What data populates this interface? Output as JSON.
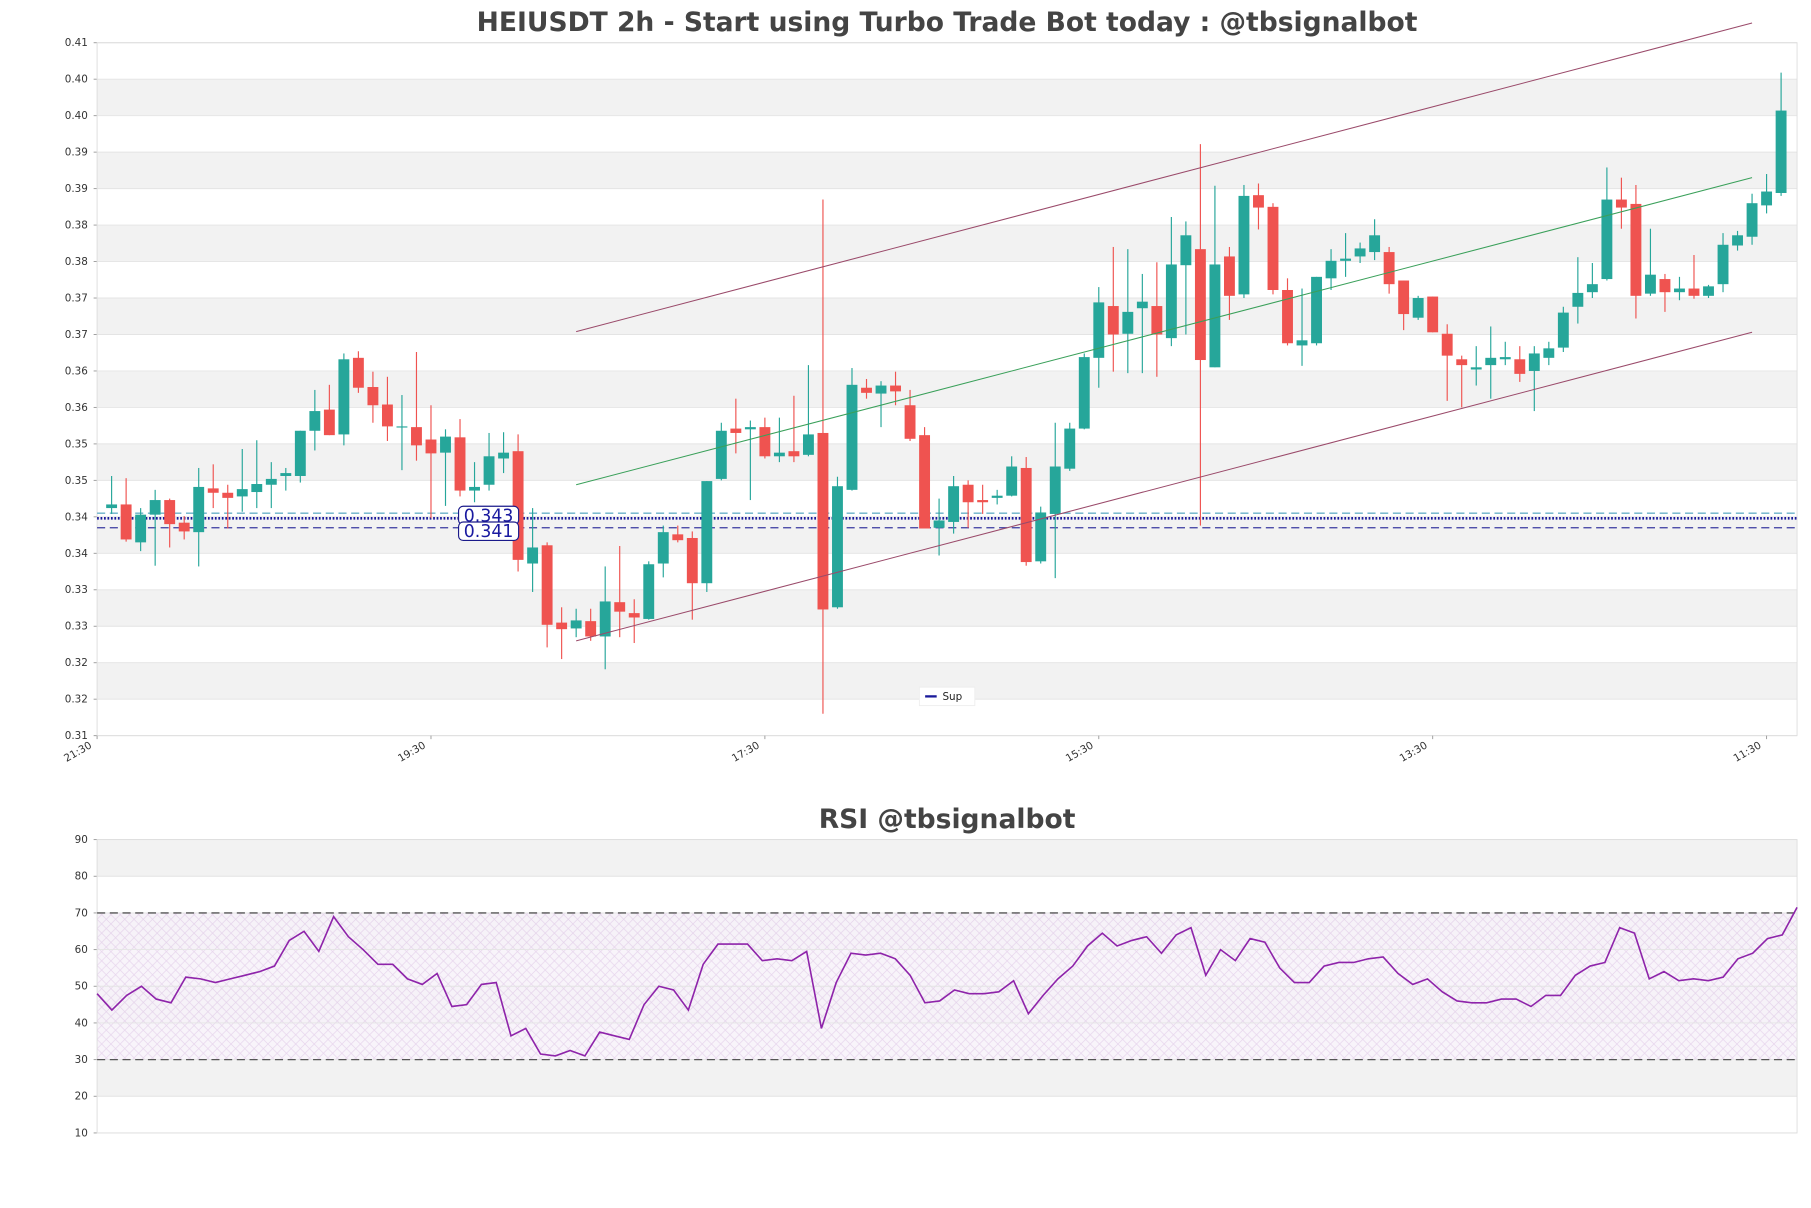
{
  "chart_data": [
    {
      "type": "candlestick",
      "title": "HEIUSDT 2h - Start using Turbo Trade Bot today : @tbsignalbot",
      "up_color": "#26a69a",
      "down_color": "#ef5350",
      "open": [
        0.3437,
        0.3442,
        0.339,
        0.3428,
        0.3448,
        0.3417,
        0.3404,
        0.3464,
        0.3458,
        0.3453,
        0.3459,
        0.3469,
        0.3481,
        0.3481,
        0.3543,
        0.3572,
        0.3538,
        0.3643,
        0.3603,
        0.3579,
        0.3548,
        0.3548,
        0.3531,
        0.3513,
        0.3534,
        0.3461,
        0.3469,
        0.3505,
        0.3515,
        0.3361,
        0.3386,
        0.328,
        0.3272,
        0.3282,
        0.3261,
        0.3308,
        0.3293,
        0.3285,
        0.3361,
        0.3401,
        0.3396,
        0.3334,
        0.3477,
        0.3546,
        0.3545,
        0.3548,
        0.3508,
        0.3515,
        0.351,
        0.354,
        0.3301,
        0.3462,
        0.3602,
        0.3594,
        0.3605,
        0.3578,
        0.3537,
        0.341,
        0.3418,
        0.3469,
        0.3448,
        0.3451,
        0.3454,
        0.3492,
        0.3364,
        0.3429,
        0.3491,
        0.3546,
        0.3643,
        0.3714,
        0.3676,
        0.3711,
        0.3714,
        0.367,
        0.377,
        0.3792,
        0.363,
        0.3782,
        0.373,
        0.3866,
        0.385,
        0.3736,
        0.366,
        0.3663,
        0.3752,
        0.3776,
        0.3782,
        0.3788,
        0.3788,
        0.3749,
        0.3698,
        0.3727,
        0.3676,
        0.3641,
        0.3627,
        0.3633,
        0.3641,
        0.3641,
        0.3625,
        0.3643,
        0.3657,
        0.3713,
        0.3733,
        0.3751,
        0.386,
        0.3854,
        0.3731,
        0.3751,
        0.3733,
        0.3738,
        0.3728,
        0.3744,
        0.3797,
        0.3809,
        0.3852,
        0.3869
      ],
      "high": [
        0.3481,
        0.3478,
        0.3437,
        0.3462,
        0.345,
        0.3426,
        0.3492,
        0.3497,
        0.3469,
        0.3518,
        0.353,
        0.35,
        0.3492,
        0.3543,
        0.3599,
        0.3606,
        0.3649,
        0.3652,
        0.3624,
        0.3617,
        0.3592,
        0.3651,
        0.3578,
        0.3545,
        0.3559,
        0.35,
        0.354,
        0.3541,
        0.3538,
        0.3437,
        0.339,
        0.3301,
        0.3299,
        0.3299,
        0.3357,
        0.3385,
        0.3312,
        0.3364,
        0.3413,
        0.3413,
        0.3405,
        0.3474,
        0.3554,
        0.3587,
        0.3557,
        0.3561,
        0.3561,
        0.3591,
        0.3633,
        0.386,
        0.348,
        0.3629,
        0.3614,
        0.3611,
        0.3624,
        0.3599,
        0.3548,
        0.345,
        0.3481,
        0.3475,
        0.3469,
        0.3462,
        0.3508,
        0.3507,
        0.3439,
        0.3554,
        0.3554,
        0.3649,
        0.374,
        0.3795,
        0.3792,
        0.3758,
        0.3774,
        0.3836,
        0.383,
        0.3936,
        0.3879,
        0.3795,
        0.388,
        0.3882,
        0.3855,
        0.3752,
        0.3738,
        0.3754,
        0.3792,
        0.3814,
        0.3801,
        0.3833,
        0.3795,
        0.3749,
        0.3728,
        0.3727,
        0.3689,
        0.3646,
        0.3659,
        0.3686,
        0.3665,
        0.3659,
        0.3659,
        0.3665,
        0.3713,
        0.3781,
        0.3773,
        0.3904,
        0.389,
        0.388,
        0.382,
        0.3758,
        0.3754,
        0.3784,
        0.3743,
        0.3814,
        0.3817,
        0.3868,
        0.3895,
        0.4034
      ],
      "low": [
        0.3429,
        0.3391,
        0.3378,
        0.3358,
        0.3383,
        0.3394,
        0.3357,
        0.3437,
        0.3409,
        0.3432,
        0.3437,
        0.3437,
        0.3461,
        0.3472,
        0.3516,
        0.3537,
        0.3523,
        0.3595,
        0.3554,
        0.3529,
        0.3489,
        0.3502,
        0.3423,
        0.344,
        0.3453,
        0.3445,
        0.3461,
        0.3485,
        0.335,
        0.3322,
        0.3246,
        0.323,
        0.326,
        0.3255,
        0.3216,
        0.326,
        0.3252,
        0.3284,
        0.3342,
        0.339,
        0.3284,
        0.3322,
        0.3475,
        0.3512,
        0.3448,
        0.3505,
        0.35,
        0.35,
        0.3508,
        0.3155,
        0.3299,
        0.3461,
        0.3587,
        0.3548,
        0.3578,
        0.3529,
        0.3409,
        0.3372,
        0.3402,
        0.341,
        0.3429,
        0.3442,
        0.3453,
        0.3358,
        0.3361,
        0.3341,
        0.3488,
        0.3545,
        0.3602,
        0.3624,
        0.3622,
        0.3622,
        0.3617,
        0.3659,
        0.3675,
        0.3413,
        0.363,
        0.3695,
        0.3725,
        0.3819,
        0.373,
        0.366,
        0.3632,
        0.366,
        0.3736,
        0.3754,
        0.3773,
        0.3777,
        0.3731,
        0.3681,
        0.3695,
        0.3678,
        0.3584,
        0.3575,
        0.3605,
        0.3587,
        0.3633,
        0.361,
        0.357,
        0.3633,
        0.3651,
        0.369,
        0.3725,
        0.3749,
        0.382,
        0.3697,
        0.3728,
        0.3706,
        0.3722,
        0.3724,
        0.3725,
        0.3733,
        0.379,
        0.3798,
        0.3841,
        0.3865
      ],
      "close": [
        0.3442,
        0.3394,
        0.3428,
        0.3448,
        0.3415,
        0.3405,
        0.3466,
        0.3458,
        0.3451,
        0.3463,
        0.347,
        0.3477,
        0.3485,
        0.3543,
        0.357,
        0.3537,
        0.3641,
        0.3602,
        0.3578,
        0.3549,
        0.3549,
        0.3523,
        0.3512,
        0.3535,
        0.3461,
        0.3466,
        0.3508,
        0.3513,
        0.3366,
        0.3383,
        0.3277,
        0.3271,
        0.3283,
        0.3261,
        0.3309,
        0.3295,
        0.3287,
        0.336,
        0.3404,
        0.3393,
        0.3334,
        0.3474,
        0.3543,
        0.354,
        0.3548,
        0.3508,
        0.3513,
        0.3508,
        0.3538,
        0.3298,
        0.3467,
        0.3606,
        0.3595,
        0.3605,
        0.3597,
        0.3532,
        0.3409,
        0.342,
        0.3467,
        0.3445,
        0.3445,
        0.3454,
        0.3494,
        0.3363,
        0.3431,
        0.3494,
        0.3546,
        0.3644,
        0.3719,
        0.3675,
        0.3706,
        0.372,
        0.3675,
        0.3771,
        0.3811,
        0.364,
        0.3771,
        0.3728,
        0.3865,
        0.3849,
        0.3736,
        0.3663,
        0.3667,
        0.3754,
        0.3776,
        0.3779,
        0.3793,
        0.3811,
        0.3744,
        0.3703,
        0.3725,
        0.3678,
        0.3646,
        0.3633,
        0.363,
        0.3643,
        0.3644,
        0.3621,
        0.3649,
        0.3656,
        0.3705,
        0.3732,
        0.3744,
        0.386,
        0.3849,
        0.3728,
        0.3757,
        0.3733,
        0.3738,
        0.3728,
        0.3741,
        0.3798,
        0.3811,
        0.3855,
        0.3871,
        0.3982
      ],
      "xlim": [
        -1,
        116.1
      ],
      "xticks": [
        {
          "value": -1,
          "label": "21:30"
        },
        {
          "value": 22,
          "label": "19:30"
        },
        {
          "value": 45,
          "label": "17:30"
        },
        {
          "value": 68,
          "label": "15:30"
        },
        {
          "value": 91,
          "label": "13:30"
        },
        {
          "value": 114,
          "label": "11:30"
        }
      ],
      "ylim": [
        0.3125,
        0.4075
      ],
      "yticks": [
        {
          "value": 0.3125,
          "label": "0.31"
        },
        {
          "value": 0.3175,
          "label": "0.32"
        },
        {
          "value": 0.3225,
          "label": "0.32"
        },
        {
          "value": 0.3275,
          "label": "0.33"
        },
        {
          "value": 0.3325,
          "label": "0.33"
        },
        {
          "value": 0.3375,
          "label": "0.34"
        },
        {
          "value": 0.3425,
          "label": "0.34"
        },
        {
          "value": 0.3475,
          "label": "0.35"
        },
        {
          "value": 0.3525,
          "label": "0.35"
        },
        {
          "value": 0.3575,
          "label": "0.36"
        },
        {
          "value": 0.3625,
          "label": "0.36"
        },
        {
          "value": 0.3675,
          "label": "0.37"
        },
        {
          "value": 0.3725,
          "label": "0.37"
        },
        {
          "value": 0.3775,
          "label": "0.38"
        },
        {
          "value": 0.3825,
          "label": "0.38"
        },
        {
          "value": 0.3875,
          "label": "0.39"
        },
        {
          "value": 0.3925,
          "label": "0.39"
        },
        {
          "value": 0.3975,
          "label": "0.40"
        },
        {
          "value": 0.4025,
          "label": "0.40"
        },
        {
          "value": 0.4075,
          "label": "0.41"
        }
      ],
      "grid": true,
      "trendlines": [
        {
          "color": "#9a4a6a",
          "x": [
            32,
            113
          ],
          "values": [
            0.3679,
            0.4102
          ]
        },
        {
          "color": "#3aa05a",
          "x": [
            32,
            113
          ],
          "values": [
            0.3469,
            0.389
          ]
        },
        {
          "color": "#9a4a6a",
          "x": [
            32,
            113
          ],
          "values": [
            0.3255,
            0.3678
          ]
        }
      ],
      "hlines": [
        {
          "value": 0.343,
          "label": "0.343",
          "color": "#6ab0c8",
          "style": "dashed"
        },
        {
          "name": "Sup",
          "value": 0.3423,
          "color": "#1a1a9a",
          "style": "dotted"
        },
        {
          "value": 0.341,
          "label": "0.341",
          "color": "#3a3aa0",
          "style": "dashed"
        }
      ],
      "legend": "lower center"
    },
    {
      "type": "line",
      "title": "RSI @tbsignalbot",
      "color": "#8e24aa",
      "values": [
        48,
        43.5,
        47.5,
        50,
        46.5,
        45.5,
        52.5,
        52,
        51,
        52,
        53,
        54,
        55.5,
        62.5,
        65,
        59.5,
        69,
        63.5,
        60,
        56,
        56,
        52,
        50.5,
        53.5,
        44.5,
        45,
        50.5,
        51,
        36.5,
        38.5,
        31.5,
        31,
        32.5,
        31,
        37.5,
        36.5,
        35.5,
        45,
        50,
        49,
        43.5,
        56,
        61.5,
        61.5,
        61.5,
        57,
        57.5,
        57,
        59.5,
        38.5,
        51,
        59,
        58.5,
        59,
        57.5,
        53,
        45.5,
        46,
        49,
        48,
        48,
        48.5,
        51.5,
        42.5,
        47.5,
        52,
        55.5,
        61,
        64.5,
        61,
        62.5,
        63.5,
        59,
        64,
        66,
        53,
        60,
        57,
        63,
        62,
        55,
        51,
        51,
        55.5,
        56.5,
        56.5,
        57.5,
        58,
        53.5,
        50.5,
        52,
        48.5,
        46,
        45.5,
        45.5,
        46.5,
        46.5,
        44.5,
        47.5,
        47.5,
        53,
        55.5,
        56.5,
        66,
        64.5,
        52,
        54,
        51.5,
        52,
        51.5,
        52.5,
        57.5,
        59,
        63,
        64,
        71.5
      ],
      "xlim": [
        0,
        115
      ],
      "ylim": [
        10,
        90
      ],
      "yticks": [
        10,
        20,
        30,
        40,
        50,
        60,
        70,
        80,
        90
      ],
      "grid": true,
      "band": [
        30,
        70
      ],
      "hlines": [
        {
          "value": 70,
          "color": "#555555",
          "style": "dashed"
        },
        {
          "value": 30,
          "color": "#555555",
          "style": "dashed"
        }
      ]
    }
  ]
}
